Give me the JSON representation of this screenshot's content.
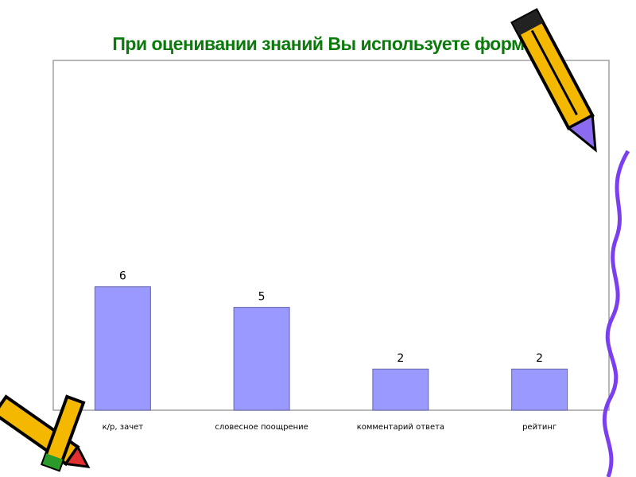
{
  "chart_data": {
    "type": "bar",
    "title": "При оценивании знаний Вы используете формы",
    "categories": [
      "к/р, зачет",
      "словесное поощрение",
      "комментарий ответа",
      "рейтинг"
    ],
    "values": [
      6,
      5,
      2,
      2
    ],
    "data_labels": [
      "6",
      "5",
      "2",
      "2"
    ],
    "xlabel": "",
    "ylabel": "",
    "ylim": [
      0,
      17
    ],
    "grid": false,
    "legend": "none",
    "colors": {
      "bar": "#9999ff",
      "bar_border": "#6666aa",
      "title": "#0a7a0a",
      "frame": "#a0a0a0"
    }
  },
  "decorations": [
    "pencil-top-right",
    "pencils-bottom-left",
    "purple-squiggle-right"
  ]
}
